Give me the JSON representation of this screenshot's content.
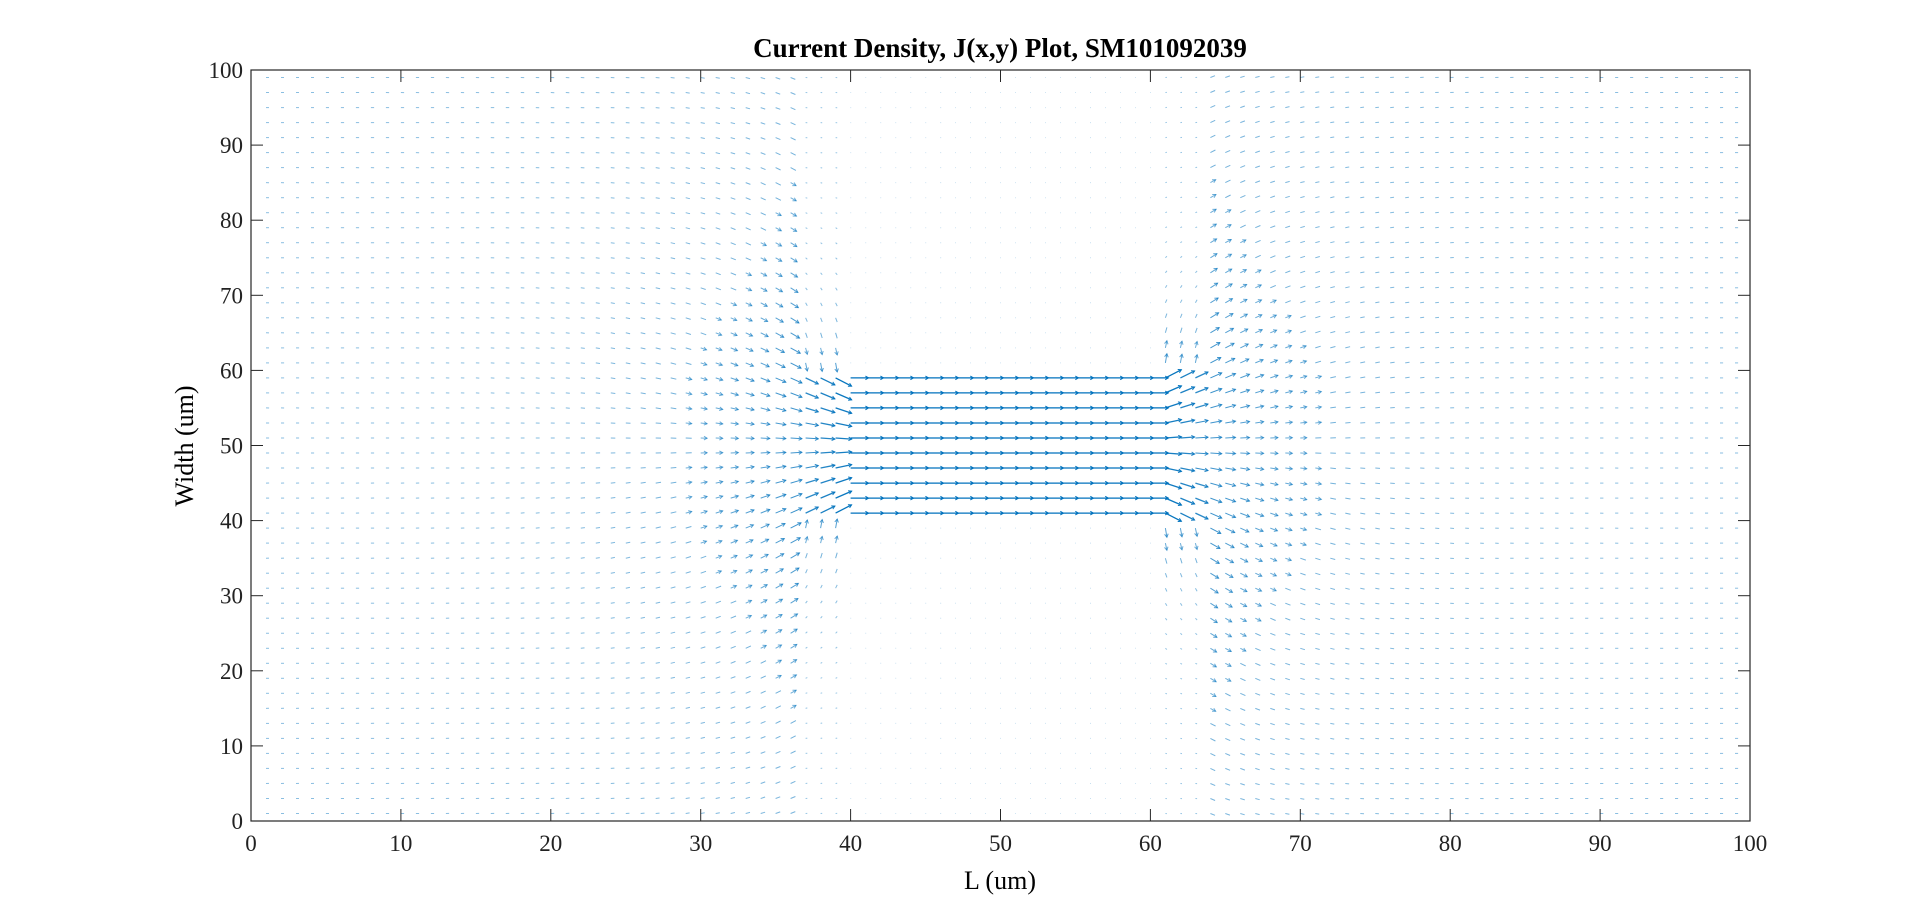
{
  "chart_data": {
    "type": "quiver",
    "title": "Current Density, J(x,y) Plot, SM101092039",
    "xlabel": "L (um)",
    "ylabel": "Width (um)",
    "xlim": [
      0,
      100
    ],
    "ylim": [
      0,
      100
    ],
    "xticks": [
      0,
      10,
      20,
      30,
      40,
      50,
      60,
      70,
      80,
      90,
      100
    ],
    "yticks": [
      0,
      10,
      20,
      30,
      40,
      50,
      60,
      70,
      80,
      90,
      100
    ],
    "xtick_labels": [
      "0",
      "10",
      "20",
      "30",
      "40",
      "50",
      "60",
      "70",
      "80",
      "90",
      "100"
    ],
    "ytick_labels": [
      "0",
      "10",
      "20",
      "30",
      "40",
      "50",
      "60",
      "70",
      "80",
      "90",
      "100"
    ],
    "grid": false,
    "legend": "none",
    "arrow_color": "#0072BD",
    "field": {
      "grid_x": [
        1,
        99,
        1
      ],
      "grid_y": [
        1,
        99,
        2
      ],
      "constriction_x": [
        39,
        61
      ],
      "constriction_y": [
        41,
        59
      ],
      "flow_direction": "+x"
    }
  }
}
